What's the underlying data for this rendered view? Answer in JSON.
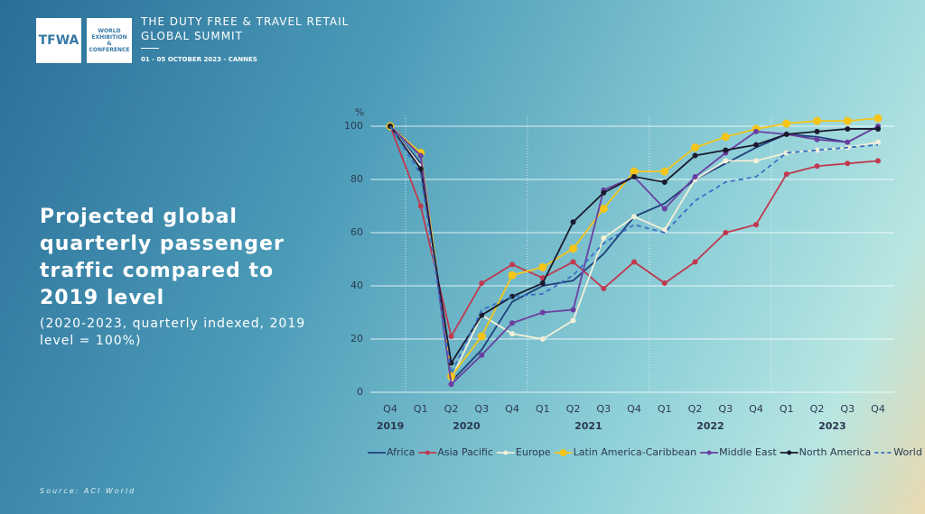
{
  "header": {
    "logo": "TFWA",
    "logo_sub": "WORLD EXHIBITION & CONFERENCE",
    "summit_line1": "THE DUTY FREE & TRAVEL RETAIL",
    "summit_line2": "GLOBAL SUMMIT",
    "dates": "01 - 05 OCTOBER 2023 - CANNES"
  },
  "source": "Source: ACI World",
  "chart_data": {
    "type": "line",
    "title": "Projected global quarterly passenger traffic compared to 2019 level",
    "subtitle": "(2020-2023, quarterly indexed, 2019 level = 100%)",
    "y_label": "%",
    "categories": [
      "Q4",
      "Q1",
      "Q2",
      "Q3",
      "Q4",
      "Q1",
      "Q2",
      "Q3",
      "Q4",
      "Q1",
      "Q2",
      "Q3",
      "Q4",
      "Q1",
      "Q2",
      "Q3",
      "Q4"
    ],
    "x_groups": [
      "2019",
      "2020",
      "2021",
      "2022",
      "2023"
    ],
    "ylim": [
      0,
      105
    ],
    "yticks": [
      0,
      20,
      40,
      60,
      80,
      100
    ],
    "grid": true,
    "series": [
      {
        "name": "Africa",
        "color": "#1f3f7a",
        "markers": false,
        "dashed": false,
        "values": [
          100,
          86,
          4,
          16,
          34,
          40,
          42,
          52,
          66,
          71,
          80,
          86,
          92,
          97,
          96,
          94,
          100
        ]
      },
      {
        "name": "Asia Pacific",
        "color": "#c0394f",
        "markers": true,
        "dashed": false,
        "values": [
          100,
          70,
          21,
          41,
          48,
          43,
          49,
          39,
          49,
          41,
          49,
          60,
          63,
          82,
          85,
          86,
          87
        ]
      },
      {
        "name": "Europe",
        "color": "#f3efd8",
        "markers": true,
        "dashed": false,
        "values": [
          100,
          85,
          5,
          29,
          22,
          20,
          27,
          58,
          66,
          61,
          80,
          87,
          87,
          90,
          91,
          92,
          94
        ]
      },
      {
        "name": "Latin America-Caribbean",
        "color": "#f5c518",
        "markers": true,
        "dashed": false,
        "values": [
          100,
          90,
          6,
          21,
          44,
          47,
          54,
          69,
          83,
          83,
          92,
          96,
          99,
          101,
          102,
          102,
          103
        ]
      },
      {
        "name": "Middle East",
        "color": "#6a3fa0",
        "markers": true,
        "dashed": false,
        "values": [
          100,
          89,
          3,
          14,
          26,
          30,
          31,
          76,
          81,
          69,
          81,
          90,
          98,
          97,
          95,
          94,
          100
        ]
      },
      {
        "name": "North America",
        "color": "#1a1a2e",
        "markers": true,
        "dashed": false,
        "values": [
          100,
          84,
          11,
          29,
          36,
          41,
          64,
          75,
          81,
          79,
          89,
          91,
          93,
          97,
          98,
          99,
          99
        ]
      },
      {
        "name": "World",
        "color": "#3a6fc4",
        "markers": false,
        "dashed": true,
        "values": [
          100,
          82,
          7,
          31,
          36,
          37,
          44,
          56,
          63,
          60,
          72,
          79,
          81,
          90,
          91,
          92,
          93
        ]
      }
    ]
  }
}
